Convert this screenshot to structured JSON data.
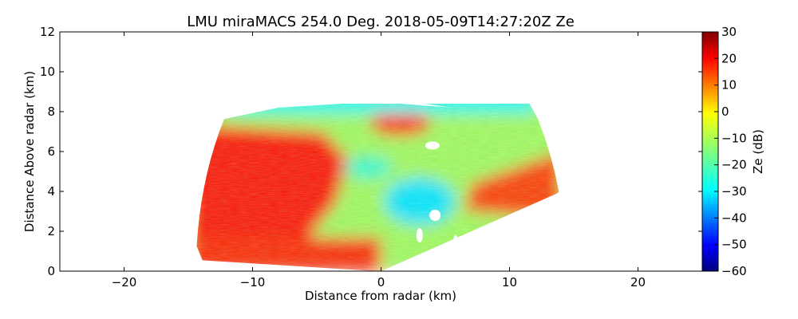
{
  "chart_data": {
    "type": "heatmap",
    "title": "LMU miraMACS 254.0 Deg. 2018-05-09T14:27:20Z  Ze",
    "xlabel": "Distance from radar (km)",
    "ylabel": "Distance Above radar  (km)",
    "xlim": [
      -25,
      25
    ],
    "ylim": [
      0,
      12
    ],
    "xticks": [
      -20,
      -10,
      0,
      10,
      20
    ],
    "yticks": [
      0,
      2,
      4,
      6,
      8,
      10,
      12
    ],
    "colorbar": {
      "label": "Ze (dB)",
      "range": [
        -60,
        30
      ],
      "ticks": [
        30,
        20,
        10,
        0,
        -10,
        -20,
        -30,
        -40,
        -50,
        -60
      ],
      "colormap": [
        "#00007f",
        "#0000ff",
        "#007fff",
        "#00ffff",
        "#7fff7f",
        "#ffff00",
        "#ff7f00",
        "#ff0000",
        "#7f0000"
      ]
    },
    "scan": {
      "azimuth_deg": 254.0,
      "max_range_km": 14.4,
      "echo_top_km": 8.4,
      "regions": [
        {
          "name": "strong-echo-left",
          "ze_db": 17
        },
        {
          "name": "moderate-echo-center",
          "ze_db": -12
        },
        {
          "name": "strong-echo-right",
          "ze_db": 13
        },
        {
          "name": "cloud-top-weak",
          "ze_db": -25
        },
        {
          "name": "bright-cell-top-center",
          "ze_db": 14
        }
      ]
    }
  }
}
